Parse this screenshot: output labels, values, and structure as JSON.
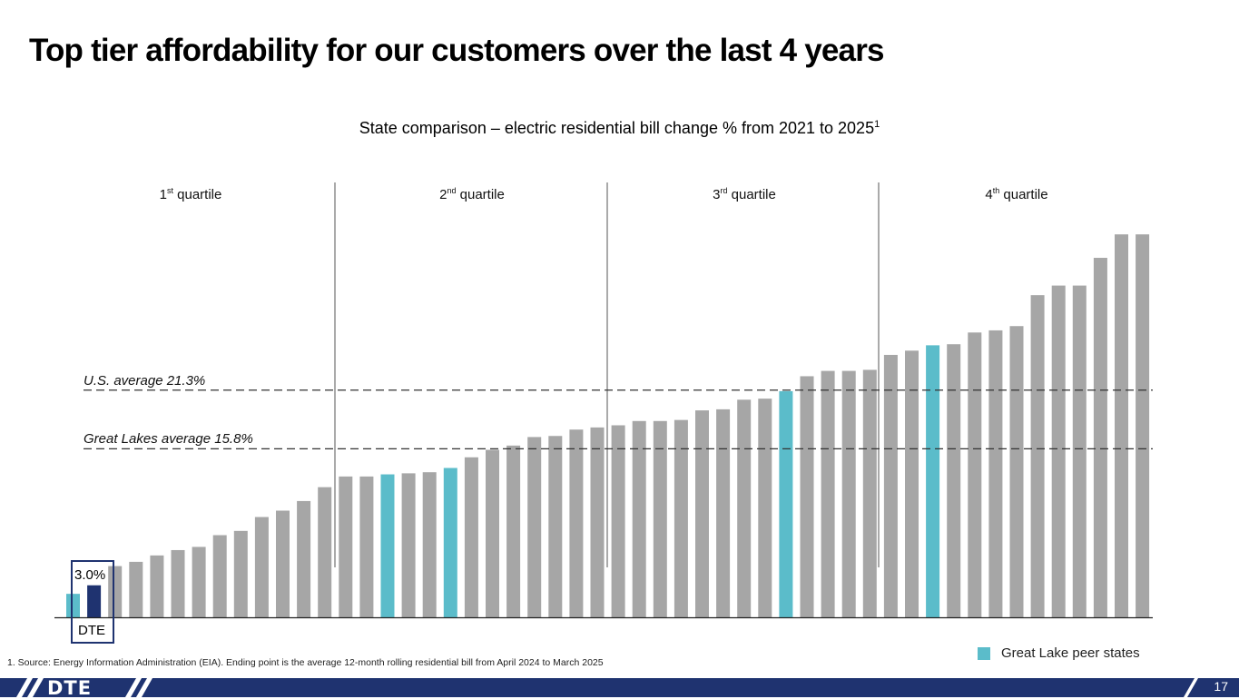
{
  "title": "Top tier affordability for our customers over the last 4 years",
  "footer": {
    "page_number": "17",
    "logo": "DTE"
  },
  "footnote": "1.   Source: Energy Information Administration (EIA). Ending point is the average 12-month rolling residential bill from April 2024 to March 2025",
  "colors": {
    "gray": "#a6a6a6",
    "great_lakes": "#5bbcca",
    "dte": "#1f3370",
    "footer": "#1f3370"
  },
  "chart_data": {
    "type": "bar",
    "title": "State comparison – electric residential bill change % from 2021 to 2025",
    "title_sup": "1",
    "ylabel": "",
    "xlabel": "",
    "ylim": [
      0,
      37
    ],
    "grid": false,
    "quartiles": [
      {
        "ord": "1",
        "sup": "st",
        "label": "quartile"
      },
      {
        "ord": "2",
        "sup": "nd",
        "label": "quartile"
      },
      {
        "ord": "3",
        "sup": "rd",
        "label": "quartile"
      },
      {
        "ord": "4",
        "sup": "th",
        "label": "quartile"
      }
    ],
    "reference_lines": [
      {
        "label": "U.S. average 21.3%",
        "value": 21.3
      },
      {
        "label": "Great Lakes average 15.8%",
        "value": 15.8
      }
    ],
    "highlight": {
      "label": "DTE",
      "value_label": "3.0%",
      "index": 1
    },
    "legend": {
      "label": "Great Lake peer states",
      "position": "bottom-right"
    },
    "values": [
      2.2,
      3.0,
      4.8,
      5.2,
      5.8,
      6.3,
      6.6,
      7.7,
      8.1,
      9.4,
      10.0,
      10.9,
      12.2,
      13.2,
      13.2,
      13.4,
      13.5,
      13.6,
      14.0,
      15.0,
      15.7,
      16.1,
      16.9,
      17.0,
      17.6,
      17.8,
      18.0,
      18.4,
      18.4,
      18.5,
      19.4,
      19.5,
      20.4,
      20.5,
      21.2,
      22.6,
      23.1,
      23.1,
      23.2,
      24.6,
      25.0,
      25.5,
      25.6,
      26.7,
      26.9,
      27.3,
      30.2,
      31.1,
      31.1,
      33.7,
      35.9,
      35.9
    ],
    "categories_type": [
      "great_lakes",
      "dte",
      "other",
      "other",
      "other",
      "other",
      "other",
      "other",
      "other",
      "other",
      "other",
      "other",
      "other",
      "other",
      "other",
      "great_lakes",
      "other",
      "other",
      "great_lakes",
      "other",
      "other",
      "other",
      "other",
      "other",
      "other",
      "other",
      "other",
      "other",
      "other",
      "other",
      "other",
      "other",
      "other",
      "other",
      "great_lakes",
      "other",
      "other",
      "other",
      "other",
      "other",
      "other",
      "great_lakes",
      "other",
      "other",
      "other",
      "other",
      "other",
      "other",
      "other",
      "other",
      "other",
      "other"
    ]
  }
}
